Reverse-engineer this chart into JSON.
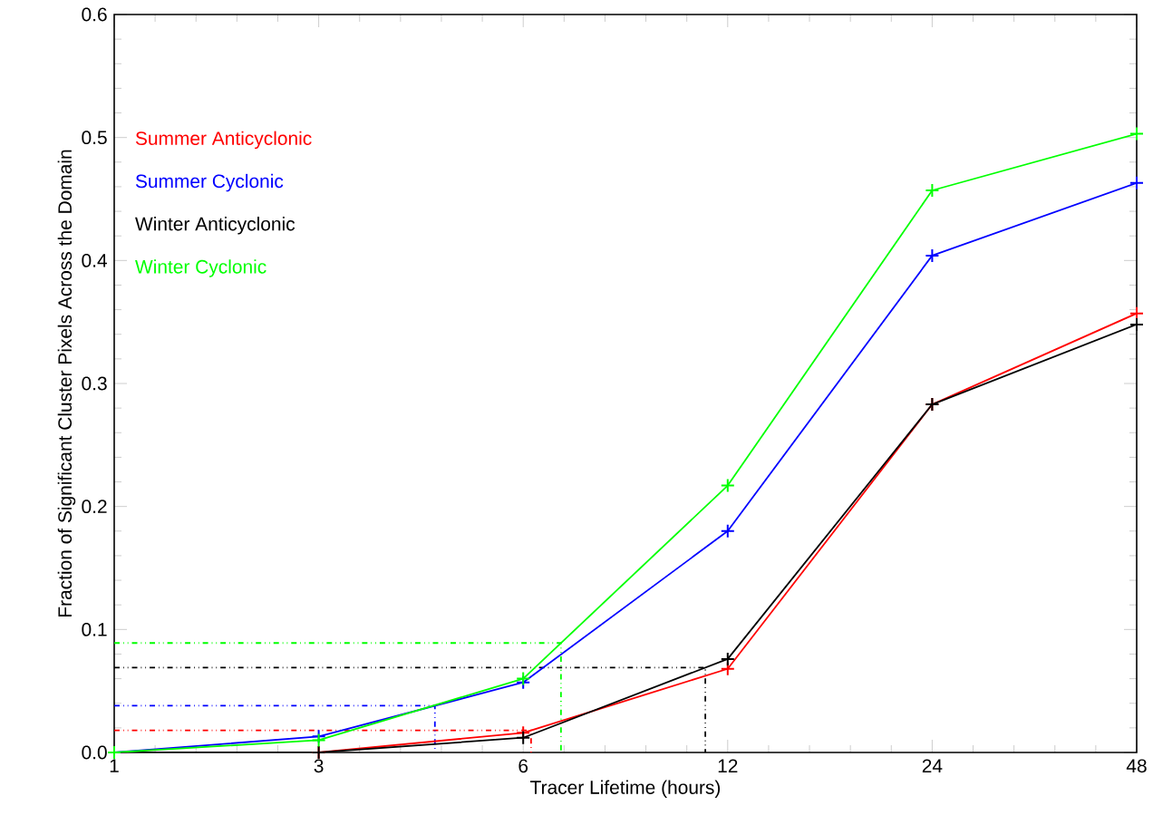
{
  "chart_data": {
    "type": "line",
    "xlabel": "Tracer Lifetime (hours)",
    "ylabel": "Fraction of Significant Cluster Pixels Across the Domain",
    "categories": [
      "1",
      "3",
      "6",
      "12",
      "24",
      "48"
    ],
    "ylim": [
      0,
      0.6
    ],
    "yticks": [
      {
        "value": 0,
        "label": "0.0"
      },
      0.1,
      0.2,
      0.3,
      0.4,
      0.5,
      0.6
    ],
    "legend": "top left",
    "marker": "cross",
    "grid": false,
    "series": [
      {
        "name": "Summer Anticyclonic",
        "color": "#ff0000",
        "values": [
          0.0,
          0.0,
          0.016,
          0.068,
          0.283,
          0.357
        ]
      },
      {
        "name": "Summer Cyclonic",
        "color": "#0000ff",
        "values": [
          0.0,
          0.013,
          0.057,
          0.18,
          0.404,
          0.463
        ]
      },
      {
        "name": "Winter Anticyclonic",
        "color": "#000000",
        "values": [
          0.0,
          0.0,
          0.012,
          0.076,
          0.283,
          0.348
        ]
      },
      {
        "name": "Winter Cyclonic",
        "color": "#00ff00",
        "values": [
          0.0,
          0.01,
          0.06,
          0.217,
          0.457,
          0.503
        ]
      }
    ],
    "ref_lines": [
      {
        "axis": "y",
        "value": 0.018,
        "color": "#ff0000",
        "line_style": "dashed"
      },
      {
        "axis": "y",
        "value": 0.038,
        "color": "#0000ff",
        "line_style": "dashed"
      },
      {
        "axis": "y",
        "value": 0.069,
        "color": "#000000",
        "line_style": "dashed"
      },
      {
        "axis": "y",
        "value": 0.089,
        "color": "#00ff00",
        "line_style": "dashed"
      }
    ]
  }
}
